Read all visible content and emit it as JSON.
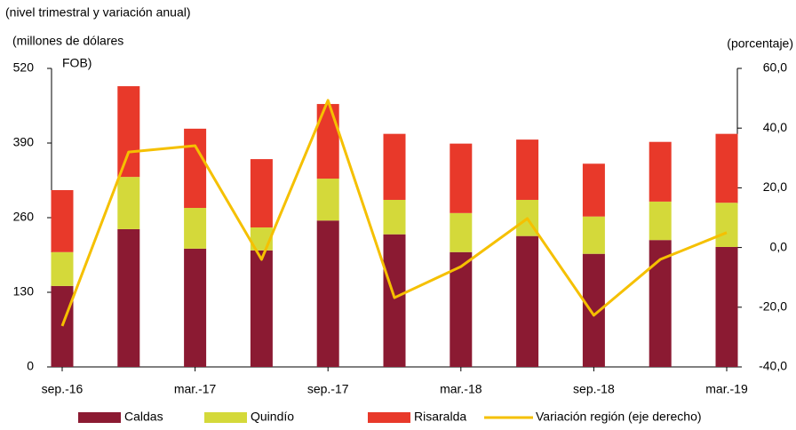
{
  "chart_data": {
    "type": "bar",
    "subtitle": "(nivel trimestral y variación anual)",
    "y_label": [
      "(millones  de dólares",
      "FOB)"
    ],
    "y2_label": "(porcentaje)",
    "stacked": true,
    "categories": [
      "sep.-16",
      null,
      "mar.-17",
      null,
      "sep.-17",
      null,
      "mar.-18",
      null,
      "sep.-18",
      null,
      "mar.-19"
    ],
    "series": [
      {
        "name": "Caldas",
        "color": "#8b1a32",
        "values": [
          141,
          240,
          206,
          203,
          255,
          231,
          200,
          228,
          197,
          221,
          209
        ]
      },
      {
        "name": "Quindío",
        "color": "#d4d93a",
        "values": [
          59,
          91,
          71,
          40,
          73,
          60,
          68,
          63,
          65,
          67,
          77
        ]
      },
      {
        "name": "Risaralda",
        "color": "#e8392a",
        "values": [
          108,
          158,
          138,
          119,
          130,
          115,
          121,
          105,
          92,
          104,
          120
        ]
      },
      {
        "name": "Variación región (eje derecho)",
        "color": "#f5c000",
        "type": "line",
        "axis": "y2",
        "values": [
          -26.3,
          32,
          34.1,
          -4,
          49.3,
          -16.8,
          -6.4,
          9.7,
          -22.7,
          -4,
          5
        ]
      }
    ],
    "ylim": [
      0,
      520
    ],
    "yticks": [
      0,
      130,
      260,
      390,
      520
    ],
    "y2lim": [
      -40,
      60
    ],
    "y2ticks": [
      {
        "value": -40,
        "label": "-40,0"
      },
      {
        "value": -20,
        "label": "-20,0"
      },
      {
        "value": 0,
        "label": "0,0"
      },
      {
        "value": 20,
        "label": "20,0"
      },
      {
        "value": 40,
        "label": "40,0"
      },
      {
        "value": 60,
        "label": "60,0"
      }
    ],
    "grid": false,
    "legend": "bottom"
  }
}
